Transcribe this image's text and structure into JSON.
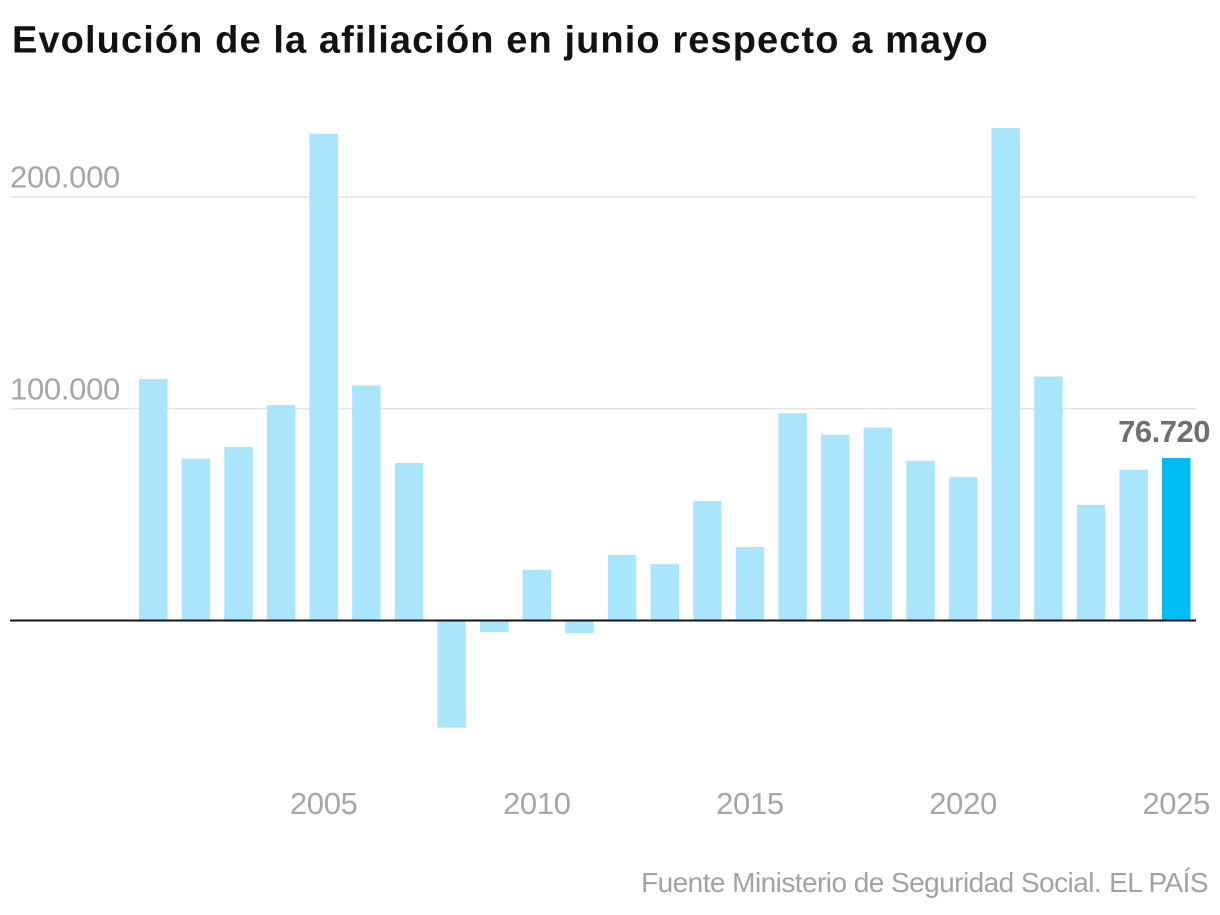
{
  "chart": {
    "title": "Evolución de la afiliación en junio respecto a mayo",
    "source": "Fuente Ministerio de Seguridad Social.",
    "credit": "EL PAÍS",
    "highlight_value_label": "76.720"
  },
  "chart_data": {
    "type": "bar",
    "title": "Evolución de la afiliación en junio respecto a mayo",
    "xlabel": "",
    "ylabel": "",
    "categories": [
      2001,
      2002,
      2003,
      2004,
      2005,
      2006,
      2007,
      2008,
      2009,
      2010,
      2011,
      2012,
      2013,
      2014,
      2015,
      2016,
      2017,
      2018,
      2019,
      2020,
      2021,
      2022,
      2023,
      2024,
      2025
    ],
    "values": [
      114000,
      76400,
      82000,
      101800,
      229800,
      111000,
      74400,
      -50600,
      -5500,
      23900,
      -5900,
      31000,
      26600,
      56500,
      34700,
      97900,
      87700,
      91100,
      75400,
      67700,
      232600,
      115200,
      54600,
      71200,
      76720
    ],
    "highlight_category": 2025,
    "highlight_value": 76720,
    "highlight_value_label": "76.720",
    "y_ticks": [
      {
        "value": 100000,
        "label": "100.000"
      },
      {
        "value": 200000,
        "label": "200.000"
      }
    ],
    "x_ticks": [
      {
        "value": 2005,
        "label": "2005"
      },
      {
        "value": 2010,
        "label": "2010"
      },
      {
        "value": 2015,
        "label": "2015"
      },
      {
        "value": 2020,
        "label": "2020"
      },
      {
        "value": 2025,
        "label": "2025"
      }
    ],
    "ylim": [
      -80000,
      245000
    ],
    "grid": true,
    "legend": false,
    "source": "Fuente Ministerio de Seguridad Social.",
    "credit": "EL PAÍS",
    "colors": {
      "bar": "#a9e6fb",
      "highlight_bar": "#00bcf4",
      "gridline": "#e4e4e4",
      "zero_axis": "#141414",
      "tick_label": "#a6a6a6",
      "value_label": "#6f6f6f",
      "title": "#121212",
      "source": "#a2a2a2"
    }
  }
}
